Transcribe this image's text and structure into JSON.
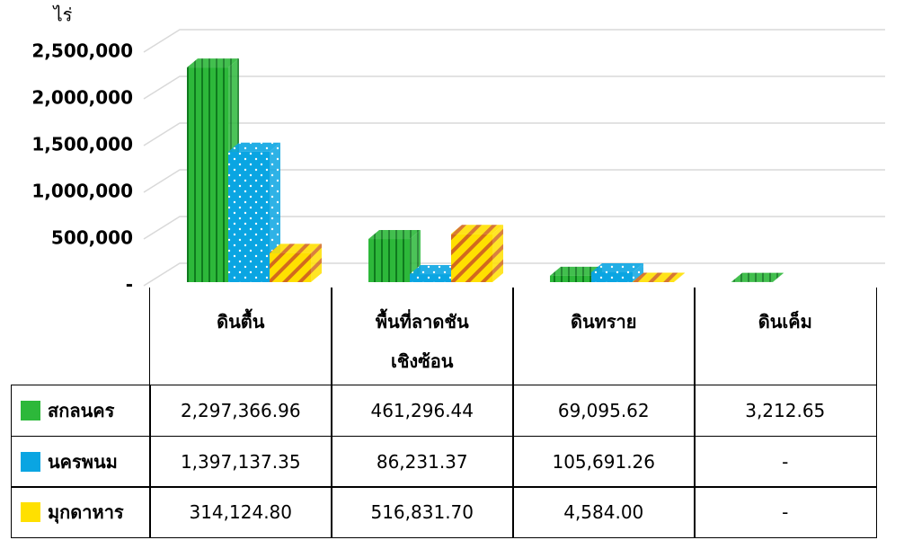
{
  "chart_data": {
    "type": "bar",
    "y_axis_label": "ไร่",
    "categories": [
      "ดินตื้น",
      "พื้นที่ลาดชัน\nเชิงซ้อน",
      "ดินทราย",
      "ดินเค็ม"
    ],
    "series": [
      {
        "name": "สกลนคร",
        "color": "#2db83a",
        "values": [
          2297366.96,
          461296.44,
          69095.62,
          3212.65
        ],
        "value_labels": [
          "2,297,366.96",
          "461,296.44",
          "69,095.62",
          "3,212.65"
        ]
      },
      {
        "name": "นครพนม",
        "color": "#0aa5e2",
        "values": [
          1397137.35,
          86231.37,
          105691.26,
          null
        ],
        "value_labels": [
          "1,397,137.35",
          "86,231.37",
          "105,691.26",
          "-"
        ]
      },
      {
        "name": "มุกดาหาร",
        "color": "#ffe000",
        "values": [
          314124.8,
          516831.7,
          4584.0,
          null
        ],
        "value_labels": [
          "314,124.80",
          "516,831.70",
          "4,584.00",
          "-"
        ]
      }
    ],
    "ylim": [
      0,
      2500000
    ],
    "yticks": [
      {
        "value": 0,
        "label": "-"
      },
      {
        "value": 500000,
        "label": "500,000"
      },
      {
        "value": 1000000,
        "label": "1,000,000"
      },
      {
        "value": 1500000,
        "label": "1,500,000"
      },
      {
        "value": 2000000,
        "label": "2,000,000"
      },
      {
        "value": 2500000,
        "label": "2,500,000"
      }
    ],
    "grid": true
  }
}
